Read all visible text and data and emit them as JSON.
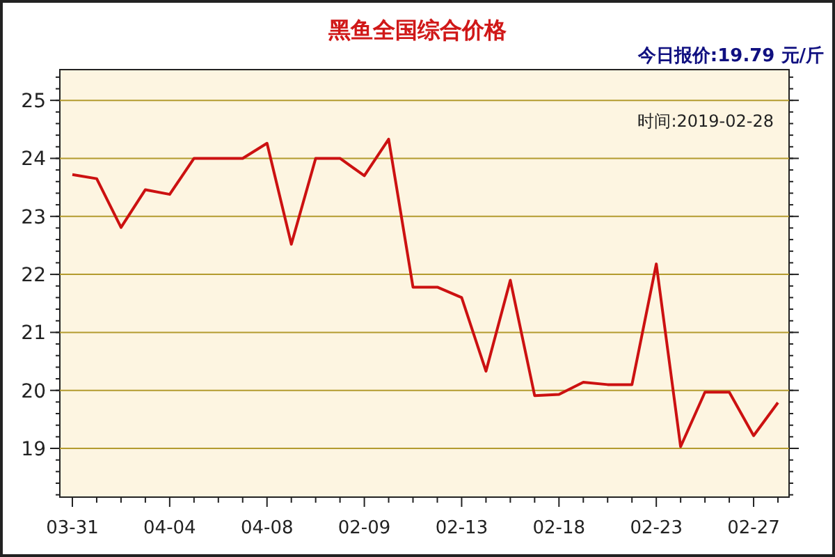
{
  "chart_data": {
    "type": "line",
    "title": "黑鱼全国综合价格",
    "annotations": [
      "今日报价:19.79 元/斤",
      "时间:2019-02-28"
    ],
    "categories": [
      "03-31",
      null,
      null,
      null,
      "04-04",
      null,
      null,
      null,
      "04-08",
      null,
      null,
      null,
      "02-09",
      null,
      null,
      null,
      "02-13",
      null,
      null,
      null,
      "02-18",
      null,
      null,
      null,
      "02-23",
      null,
      null,
      null,
      "02-27",
      null
    ],
    "series": [
      {
        "color": "#cc1111",
        "values": [
          23.72,
          23.65,
          22.81,
          23.46,
          23.38,
          24.0,
          24.0,
          24.0,
          24.26,
          22.52,
          24.0,
          24.0,
          23.7,
          24.33,
          21.78,
          21.78,
          21.6,
          20.33,
          21.9,
          19.91,
          19.93,
          20.14,
          20.1,
          20.1,
          22.18,
          19.03,
          19.97,
          19.97,
          19.22,
          19.79
        ]
      }
    ],
    "ylim": [
      18.16,
      25.53
    ],
    "yticks": [
      19,
      20,
      21,
      22,
      23,
      24,
      25
    ],
    "grid": "y",
    "marker": "none",
    "line_style": "solid"
  }
}
